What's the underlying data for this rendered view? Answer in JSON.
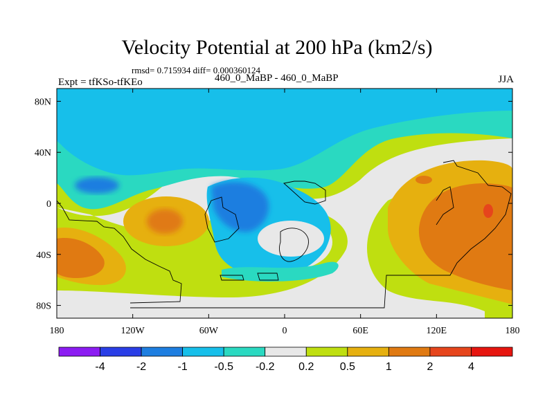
{
  "title": "Velocity Potential at 200 hPa (km2/s)",
  "rmsd_text": "rmsd= 0.715934 diff= 0.000360124",
  "expt_text": "Expt = tfKSo-tfKEo",
  "center_text": "460_0_MaBP - 460_0_MaBP",
  "season_text": "JJA",
  "chart_data": {
    "type": "heatmap",
    "title": "Velocity Potential at 200 hPa (km2/s)",
    "xlabel": "",
    "ylabel": "",
    "xlim": [
      -180,
      180
    ],
    "ylim": [
      -90,
      90
    ],
    "x_ticks": [
      -180,
      -120,
      -60,
      0,
      60,
      120,
      180
    ],
    "x_tick_labels": [
      "180",
      "120W",
      "60W",
      "0",
      "60E",
      "120E",
      "180"
    ],
    "y_ticks": [
      80,
      40,
      0,
      -40,
      -80
    ],
    "y_tick_labels": [
      "80N",
      "40N",
      "0",
      "40S",
      "80S"
    ],
    "colorbar": {
      "levels": [
        "-4",
        "-2",
        "-1",
        "-0.5",
        "-0.2",
        "0.2",
        "0.5",
        "1",
        "2",
        "4"
      ],
      "colors": [
        "#8c1cf2",
        "#2a3ee6",
        "#1e7ee0",
        "#17bfea",
        "#2ad9c1",
        "#e8e8e8",
        "#bfdf10",
        "#e6b00f",
        "#e07a12",
        "#e6451c",
        "#e6150f"
      ]
    },
    "approx_regions": [
      {
        "label": "negative (-0.5 to -0.2)",
        "lon": [
          -180,
          180
        ],
        "lat": [
          45,
          90
        ]
      },
      {
        "label": "negative (-1 to -0.5)",
        "lon": [
          -160,
          -130
        ],
        "lat": [
          5,
          20
        ]
      },
      {
        "label": "negative (-1 to -0.5)",
        "lon": [
          -60,
          -20
        ],
        "lat": [
          -20,
          20
        ]
      },
      {
        "label": "positive (1 to 2)",
        "lon": [
          -120,
          -80
        ],
        "lat": [
          -30,
          -5
        ]
      },
      {
        "label": "positive (1 to 2)",
        "lon": [
          -180,
          -140
        ],
        "lat": [
          -60,
          -20
        ]
      },
      {
        "label": "positive (1 to 2)",
        "lon": [
          110,
          180
        ],
        "lat": [
          -60,
          20
        ]
      },
      {
        "label": "positive (2 to 4)",
        "lon": [
          155,
          165
        ],
        "lat": [
          -10,
          0
        ]
      },
      {
        "label": "near zero (-0.2 to 0.2)",
        "lon": [
          -30,
          20
        ],
        "lat": [
          -30,
          -10
        ]
      },
      {
        "label": "near zero (-0.2 to 0.2)",
        "lon": [
          40,
          110
        ],
        "lat": [
          -80,
          40
        ]
      }
    ]
  }
}
